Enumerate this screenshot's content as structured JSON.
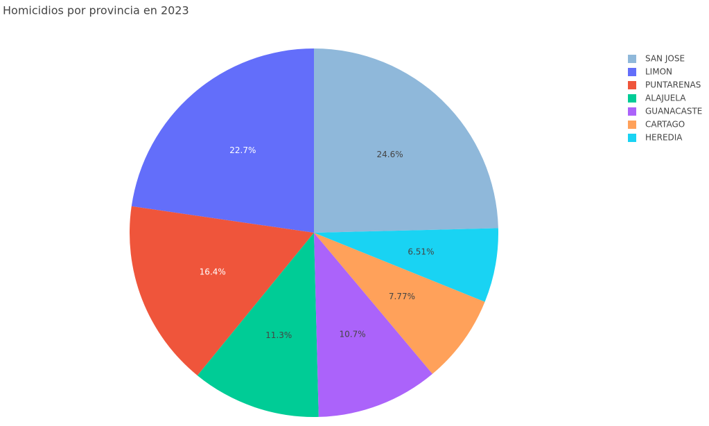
{
  "chart_data": {
    "type": "pie",
    "title": "Homicidios por provincia en 2023",
    "categories": [
      "SAN JOSE",
      "LIMON",
      "PUNTARENAS",
      "ALAJUELA",
      "GUANACASTE",
      "CARTAGO",
      "HEREDIA"
    ],
    "values": [
      24.6,
      22.7,
      16.4,
      11.3,
      10.7,
      7.77,
      6.51
    ],
    "value_labels": [
      "24.6%",
      "22.7%",
      "16.4%",
      "11.3%",
      "10.7%",
      "7.77%",
      "6.51%"
    ],
    "colors": [
      "#8fb8da",
      "#636efa",
      "#ef553b",
      "#00cc96",
      "#ab63fa",
      "#ffa15a",
      "#19d3f3"
    ],
    "legend": "top-right"
  }
}
